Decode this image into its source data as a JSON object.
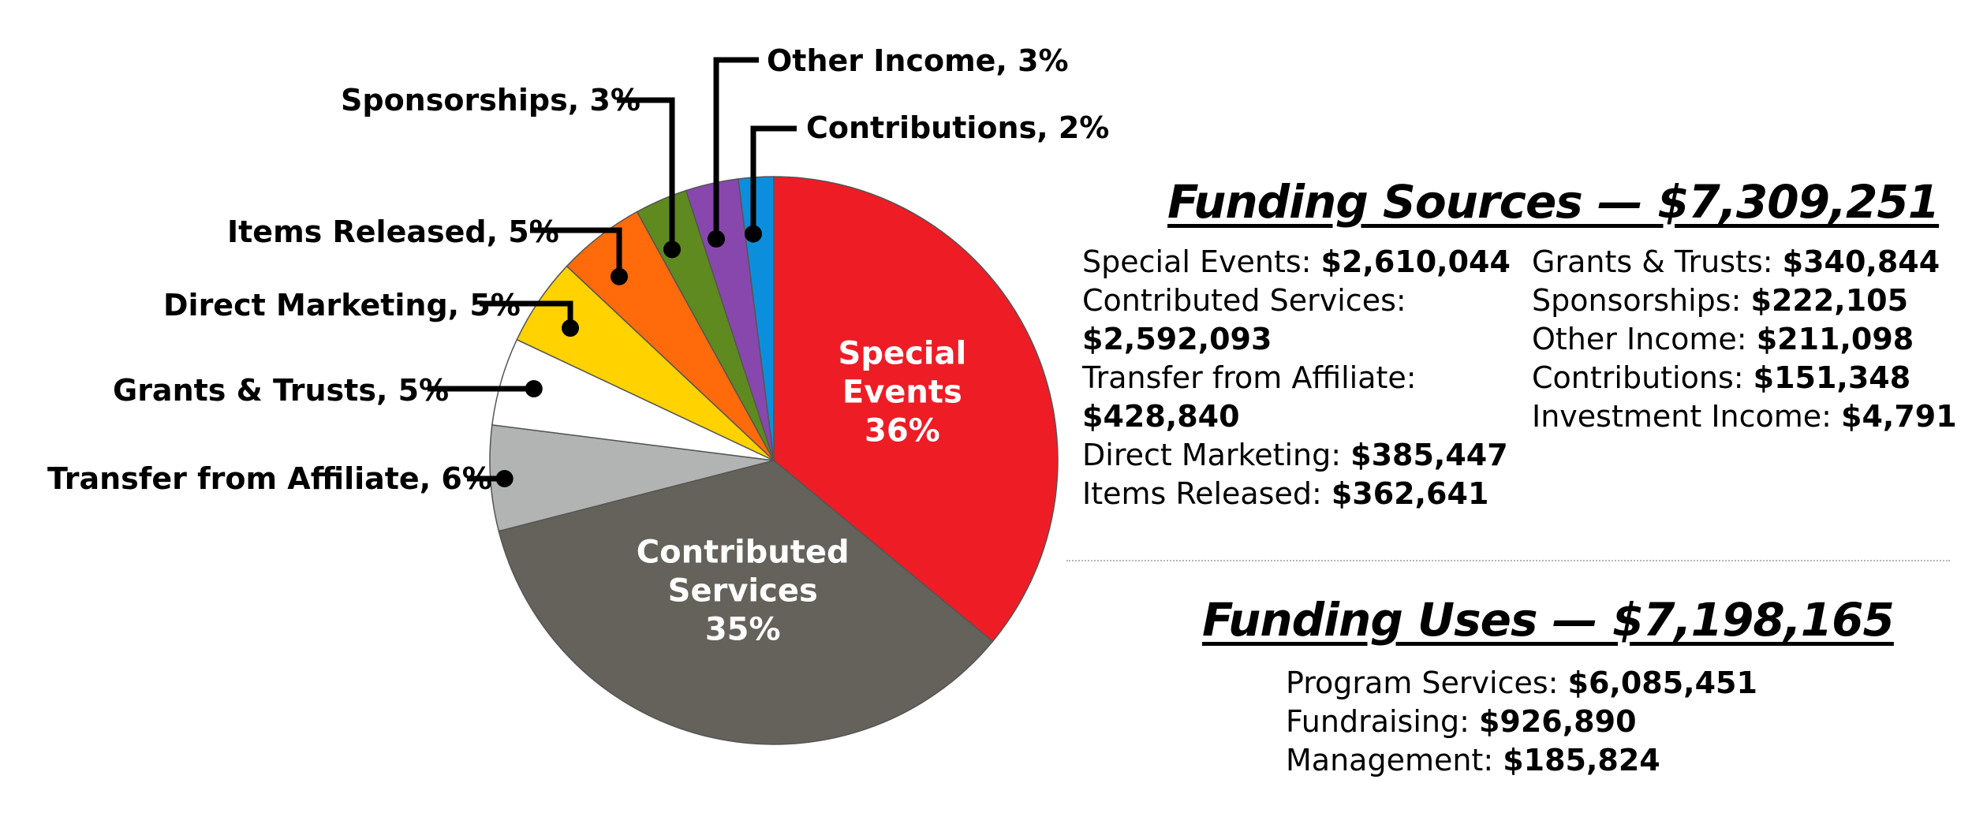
{
  "chart_data": {
    "type": "pie",
    "start_angle_deg": 0,
    "direction": "clockwise",
    "slices": [
      {
        "label": "Special Events",
        "percent": 36,
        "color": "#ee1c25",
        "inside_lines": [
          "Special",
          "Events",
          "36%"
        ]
      },
      {
        "label": "Contributed Services",
        "percent": 35,
        "color": "#64625a",
        "inside_lines": [
          "Contributed",
          "Services",
          "35%"
        ]
      },
      {
        "label": "Transfer from Affiliate",
        "percent": 6,
        "color": "#b2b4b3",
        "callout": "Transfer from Affiliate, 6%"
      },
      {
        "label": "Grants & Trusts",
        "percent": 5,
        "color": "#ffffff",
        "callout": "Grants & Trusts, 5%"
      },
      {
        "label": "Direct Marketing",
        "percent": 5,
        "color": "#ffd200",
        "callout": "Direct Marketing, 5%"
      },
      {
        "label": "Items Released",
        "percent": 5,
        "color": "#ff6a0a",
        "callout": "Items Released, 5%"
      },
      {
        "label": "Sponsorships",
        "percent": 3,
        "color": "#5f8a1f",
        "callout": "Sponsorships, 3%"
      },
      {
        "label": "Other Income",
        "percent": 3,
        "color": "#8847ad",
        "callout": "Other Income, 3%"
      },
      {
        "label": "Contributions",
        "percent": 2,
        "color": "#0b8fdc",
        "callout": "Contributions, 2%"
      }
    ]
  },
  "sources": {
    "title": "Funding Sources — $7,309,251",
    "left": [
      {
        "label": "Special Events: ",
        "value": "$2,610,044"
      },
      {
        "label": "Contributed Services: ",
        "value": "$2,592,093"
      },
      {
        "label": "Transfer from Affiliate: ",
        "value": "$428,840"
      },
      {
        "label": "Direct Marketing: ",
        "value": "$385,447"
      },
      {
        "label": "Items Released: ",
        "value": "$362,641"
      }
    ],
    "right": [
      {
        "label": "Grants & Trusts: ",
        "value": "$340,844"
      },
      {
        "label": "Sponsorships: ",
        "value": "$222,105"
      },
      {
        "label": "Other Income: ",
        "value": "$211,098"
      },
      {
        "label": "Contributions: ",
        "value": "$151,348"
      },
      {
        "label": "Investment Income: ",
        "value": "$4,791"
      }
    ]
  },
  "uses": {
    "title": "Funding Uses — $7,198,165",
    "items": [
      {
        "label": "Program Services: ",
        "value": "$6,085,451"
      },
      {
        "label": "Fundraising: ",
        "value": "$926,890"
      },
      {
        "label": "Management: ",
        "value": "$185,824"
      }
    ]
  }
}
